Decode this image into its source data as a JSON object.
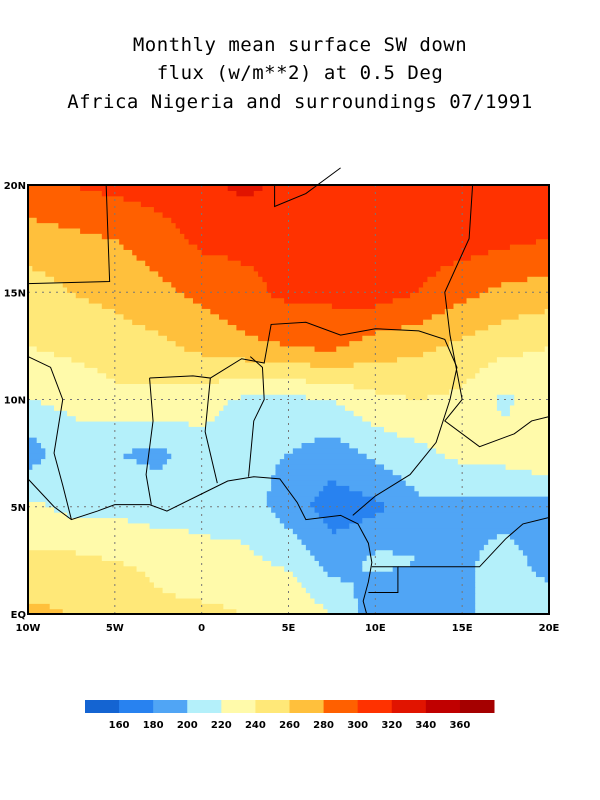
{
  "title": {
    "line1": "Monthly mean surface SW down",
    "line2": "flux (w/m**2) at 0.5 Deg",
    "line3": "Africa Nigeria and surroundings 07/1991"
  },
  "chart_data": {
    "type": "heatmap",
    "subtype": "filled contour map",
    "lon_range": [
      -10,
      20
    ],
    "lat_range": [
      0,
      20
    ],
    "grid_lines": true,
    "grid_step_deg": 5,
    "x_tick_labels": [
      "10W",
      "5W",
      "0",
      "5E",
      "10E",
      "15E",
      "20E"
    ],
    "y_tick_labels": [
      "EQ",
      "5N",
      "10N",
      "15N",
      "20N"
    ],
    "field_lons": [
      -10,
      -7.5,
      -5,
      -2.5,
      0,
      2.5,
      5,
      7.5,
      10,
      12.5,
      15,
      17.5,
      20
    ],
    "field_lats": [
      0,
      2.5,
      5,
      7.5,
      10,
      12.5,
      15,
      17.5,
      20
    ],
    "field_values_approx": [
      [
        265,
        260,
        260,
        245,
        245,
        240,
        240,
        220,
        185,
        180,
        195,
        210,
        215
      ],
      [
        245,
        245,
        240,
        235,
        225,
        225,
        215,
        190,
        205,
        200,
        195,
        210,
        190
      ],
      [
        225,
        215,
        215,
        210,
        215,
        210,
        190,
        170,
        175,
        195,
        195,
        190,
        190
      ],
      [
        190,
        210,
        200,
        195,
        210,
        205,
        200,
        190,
        205,
        215,
        225,
        230,
        240
      ],
      [
        220,
        225,
        235,
        235,
        230,
        215,
        215,
        220,
        235,
        240,
        235,
        215,
        235
      ],
      [
        240,
        245,
        250,
        255,
        265,
        275,
        280,
        285,
        270,
        265,
        255,
        245,
        240
      ],
      [
        250,
        260,
        265,
        275,
        285,
        295,
        305,
        305,
        310,
        300,
        285,
        275,
        270
      ],
      [
        270,
        275,
        280,
        290,
        305,
        305,
        300,
        300,
        310,
        310,
        310,
        305,
        300
      ],
      [
        295,
        300,
        305,
        310,
        315,
        325,
        315,
        305,
        310,
        310,
        310,
        310,
        305
      ]
    ],
    "colorbar": {
      "levels": [
        160,
        180,
        200,
        220,
        240,
        260,
        280,
        300,
        320,
        340,
        360
      ],
      "tick_labels": [
        "160",
        "180",
        "200",
        "220",
        "240",
        "260",
        "280",
        "300",
        "320",
        "340",
        "360"
      ],
      "colors": [
        "#1464d2",
        "#2882f0",
        "#50a5f5",
        "#b4f0fa",
        "#fffaaa",
        "#ffe878",
        "#ffc03c",
        "#ff6000",
        "#ff3200",
        "#e11400",
        "#c00000",
        "#a50000"
      ]
    }
  }
}
